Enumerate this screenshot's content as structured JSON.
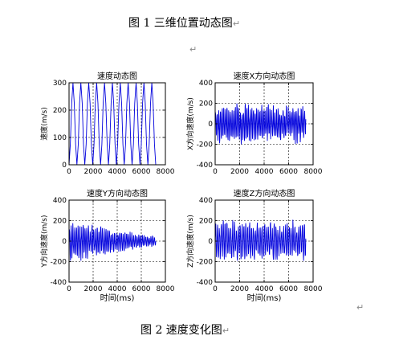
{
  "captions": {
    "fig1": "图 1  三维位置动态图",
    "fig2": "图 2  速度变化图",
    "return_mark": "↵"
  },
  "colors": {
    "line": "#0000dd",
    "axis": "#000000",
    "grid": "#000000",
    "background": "#ffffff"
  },
  "chart_data": [
    {
      "type": "line",
      "title": "速度动态图",
      "xlabel": "",
      "ylabel": "速度(m/s)",
      "xlim": [
        0,
        8000
      ],
      "ylim": [
        0,
        300
      ],
      "xticks": [
        0,
        2000,
        4000,
        6000,
        8000
      ],
      "yticks": [
        0,
        100,
        200,
        300
      ],
      "grid": true,
      "signal": {
        "duration_ms": 7200,
        "offset": 150,
        "amplitude": 150,
        "cycles": 11,
        "jitter": 0
      }
    },
    {
      "type": "line",
      "title": "速度X方向动态图",
      "xlabel": "",
      "ylabel": "X方向速度(m/s)",
      "xlim": [
        0,
        8000
      ],
      "ylim": [
        -400,
        400
      ],
      "xticks": [
        0,
        2000,
        4000,
        6000,
        8000
      ],
      "yticks": [
        -400,
        -200,
        0,
        200,
        400
      ],
      "grid": true,
      "signal": {
        "duration_ms": 7400,
        "offset": 0,
        "amplitude": 180,
        "cycles": 55,
        "jitter": 0.55
      }
    },
    {
      "type": "line",
      "title": "速度Y方向动态图",
      "xlabel": "时间(ms)",
      "ylabel": "Y方向速度(m/s)",
      "xlim": [
        0,
        8000
      ],
      "ylim": [
        -400,
        400
      ],
      "xticks": [
        0,
        2000,
        4000,
        6000,
        8000
      ],
      "yticks": [
        -400,
        -200,
        0,
        200,
        400
      ],
      "grid": true,
      "signal": {
        "duration_ms": 7200,
        "offset": 0,
        "amplitude": 200,
        "cycles": 50,
        "jitter": 0.45,
        "decay_to": 0.25
      }
    },
    {
      "type": "line",
      "title": "速度Z方向动态图",
      "xlabel": "时间(ms)",
      "ylabel": "Z方向速度(m/s)",
      "xlim": [
        0,
        8000
      ],
      "ylim": [
        -400,
        400
      ],
      "xticks": [
        0,
        2000,
        4000,
        6000,
        8000
      ],
      "yticks": [
        -400,
        -200,
        0,
        200,
        400
      ],
      "grid": true,
      "signal": {
        "duration_ms": 7400,
        "offset": 0,
        "amplitude": 200,
        "cycles": 48,
        "jitter": 0.4
      }
    }
  ]
}
